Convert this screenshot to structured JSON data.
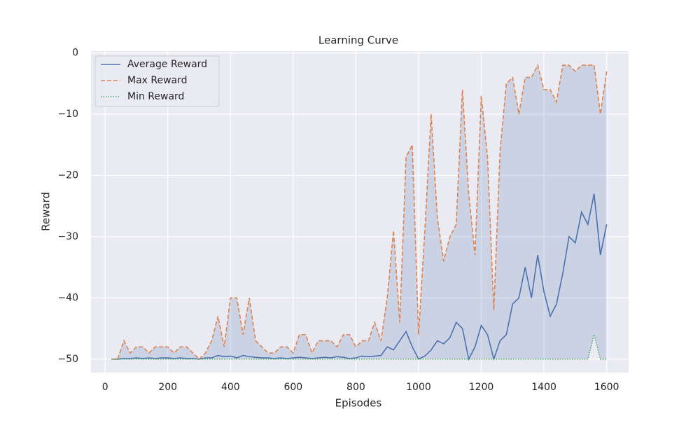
{
  "chart_data": {
    "type": "line",
    "title": "Learning Curve",
    "x_label": "Episodes",
    "y_label": "Reward",
    "x": [
      20,
      40,
      60,
      80,
      100,
      120,
      140,
      160,
      180,
      200,
      220,
      240,
      260,
      280,
      300,
      320,
      340,
      360,
      380,
      400,
      420,
      440,
      460,
      480,
      500,
      520,
      540,
      560,
      580,
      600,
      620,
      640,
      660,
      680,
      700,
      720,
      740,
      760,
      780,
      800,
      820,
      840,
      860,
      880,
      900,
      920,
      940,
      960,
      980,
      1000,
      1020,
      1040,
      1060,
      1080,
      1100,
      1120,
      1140,
      1160,
      1180,
      1200,
      1220,
      1240,
      1260,
      1280,
      1300,
      1320,
      1340,
      1360,
      1380,
      1400,
      1420,
      1440,
      1460,
      1480,
      1500,
      1520,
      1540,
      1560,
      1580,
      1600
    ],
    "series": [
      {
        "name": "Average Reward",
        "color": "#4c72b0",
        "dash": "solid",
        "values": [
          -50,
          -50,
          -49.9,
          -49.9,
          -49.8,
          -49.9,
          -49.8,
          -49.9,
          -49.8,
          -49.8,
          -49.9,
          -49.8,
          -49.9,
          -49.9,
          -50,
          -49.8,
          -49.8,
          -49.4,
          -49.6,
          -49.5,
          -49.8,
          -49.4,
          -49.6,
          -49.7,
          -49.8,
          -49.8,
          -49.9,
          -49.8,
          -49.9,
          -49.8,
          -49.7,
          -49.8,
          -49.9,
          -49.8,
          -49.7,
          -49.8,
          -49.6,
          -49.7,
          -49.9,
          -49.8,
          -49.5,
          -49.6,
          -49.5,
          -49.4,
          -48,
          -48.5,
          -47,
          -45.5,
          -48,
          -50,
          -49.5,
          -48.5,
          -47,
          -47.5,
          -46.5,
          -44,
          -45,
          -50,
          -48,
          -44.5,
          -46,
          -50,
          -47,
          -46,
          -41,
          -40,
          -35,
          -40,
          -33,
          -39,
          -43,
          -41,
          -36,
          -30,
          -31,
          -26,
          -28,
          -23,
          -33,
          -28
        ]
      },
      {
        "name": "Max Reward",
        "color": "#dd8452",
        "dash": "dashed",
        "values": [
          -50,
          -50,
          -47,
          -49,
          -48,
          -48,
          -49,
          -48,
          -48,
          -48,
          -49,
          -48,
          -48,
          -49,
          -50,
          -49,
          -47,
          -43,
          -48,
          -40,
          -40,
          -46,
          -40,
          -47,
          -48,
          -49,
          -49,
          -48,
          -48,
          -49,
          -46,
          -46,
          -49,
          -47,
          -47,
          -47,
          -48,
          -46,
          -46,
          -48,
          -47,
          -47,
          -44,
          -47,
          -40,
          -29,
          -44,
          -17,
          -15,
          -46,
          -29,
          -10,
          -27,
          -34,
          -30,
          -28,
          -6,
          -23,
          -33,
          -7,
          -17,
          -42,
          -16,
          -5,
          -4,
          -10,
          -4,
          -4,
          -2,
          -6,
          -6,
          -8,
          -2,
          -2,
          -3,
          -2,
          -2,
          -2,
          -10,
          -3
        ]
      },
      {
        "name": "Min Reward",
        "color": "#55a868",
        "dash": "dotted",
        "values": [
          -50,
          -50,
          -50,
          -50,
          -50,
          -50,
          -50,
          -50,
          -50,
          -50,
          -50,
          -50,
          -50,
          -50,
          -50,
          -50,
          -50,
          -50,
          -50,
          -50,
          -50,
          -50,
          -50,
          -50,
          -50,
          -50,
          -50,
          -50,
          -50,
          -50,
          -50,
          -50,
          -50,
          -50,
          -50,
          -50,
          -50,
          -50,
          -50,
          -50,
          -50,
          -50,
          -50,
          -50,
          -50,
          -50,
          -50,
          -50,
          -50,
          -50,
          -50,
          -50,
          -50,
          -50,
          -50,
          -50,
          -50,
          -50,
          -50,
          -50,
          -50,
          -50,
          -50,
          -50,
          -50,
          -50,
          -50,
          -50,
          -50,
          -50,
          -50,
          -50,
          -50,
          -50,
          -50,
          -50,
          -50,
          -46,
          -50,
          -50
        ]
      }
    ],
    "fill_between": {
      "color": "#4c72b0",
      "opacity": 0.2
    },
    "xlim": [
      -45,
      1670
    ],
    "ylim": [
      -52.2,
      0.3
    ],
    "xticks": [
      0,
      200,
      400,
      600,
      800,
      1000,
      1200,
      1400,
      1600
    ],
    "yticks": [
      {
        "value": -50,
        "label": "−50"
      },
      {
        "value": -40,
        "label": "−40"
      },
      {
        "value": -30,
        "label": "−30"
      },
      {
        "value": -20,
        "label": "−20"
      },
      {
        "value": -10,
        "label": "−10"
      },
      0
    ],
    "grid": true,
    "legend": "upper left"
  }
}
